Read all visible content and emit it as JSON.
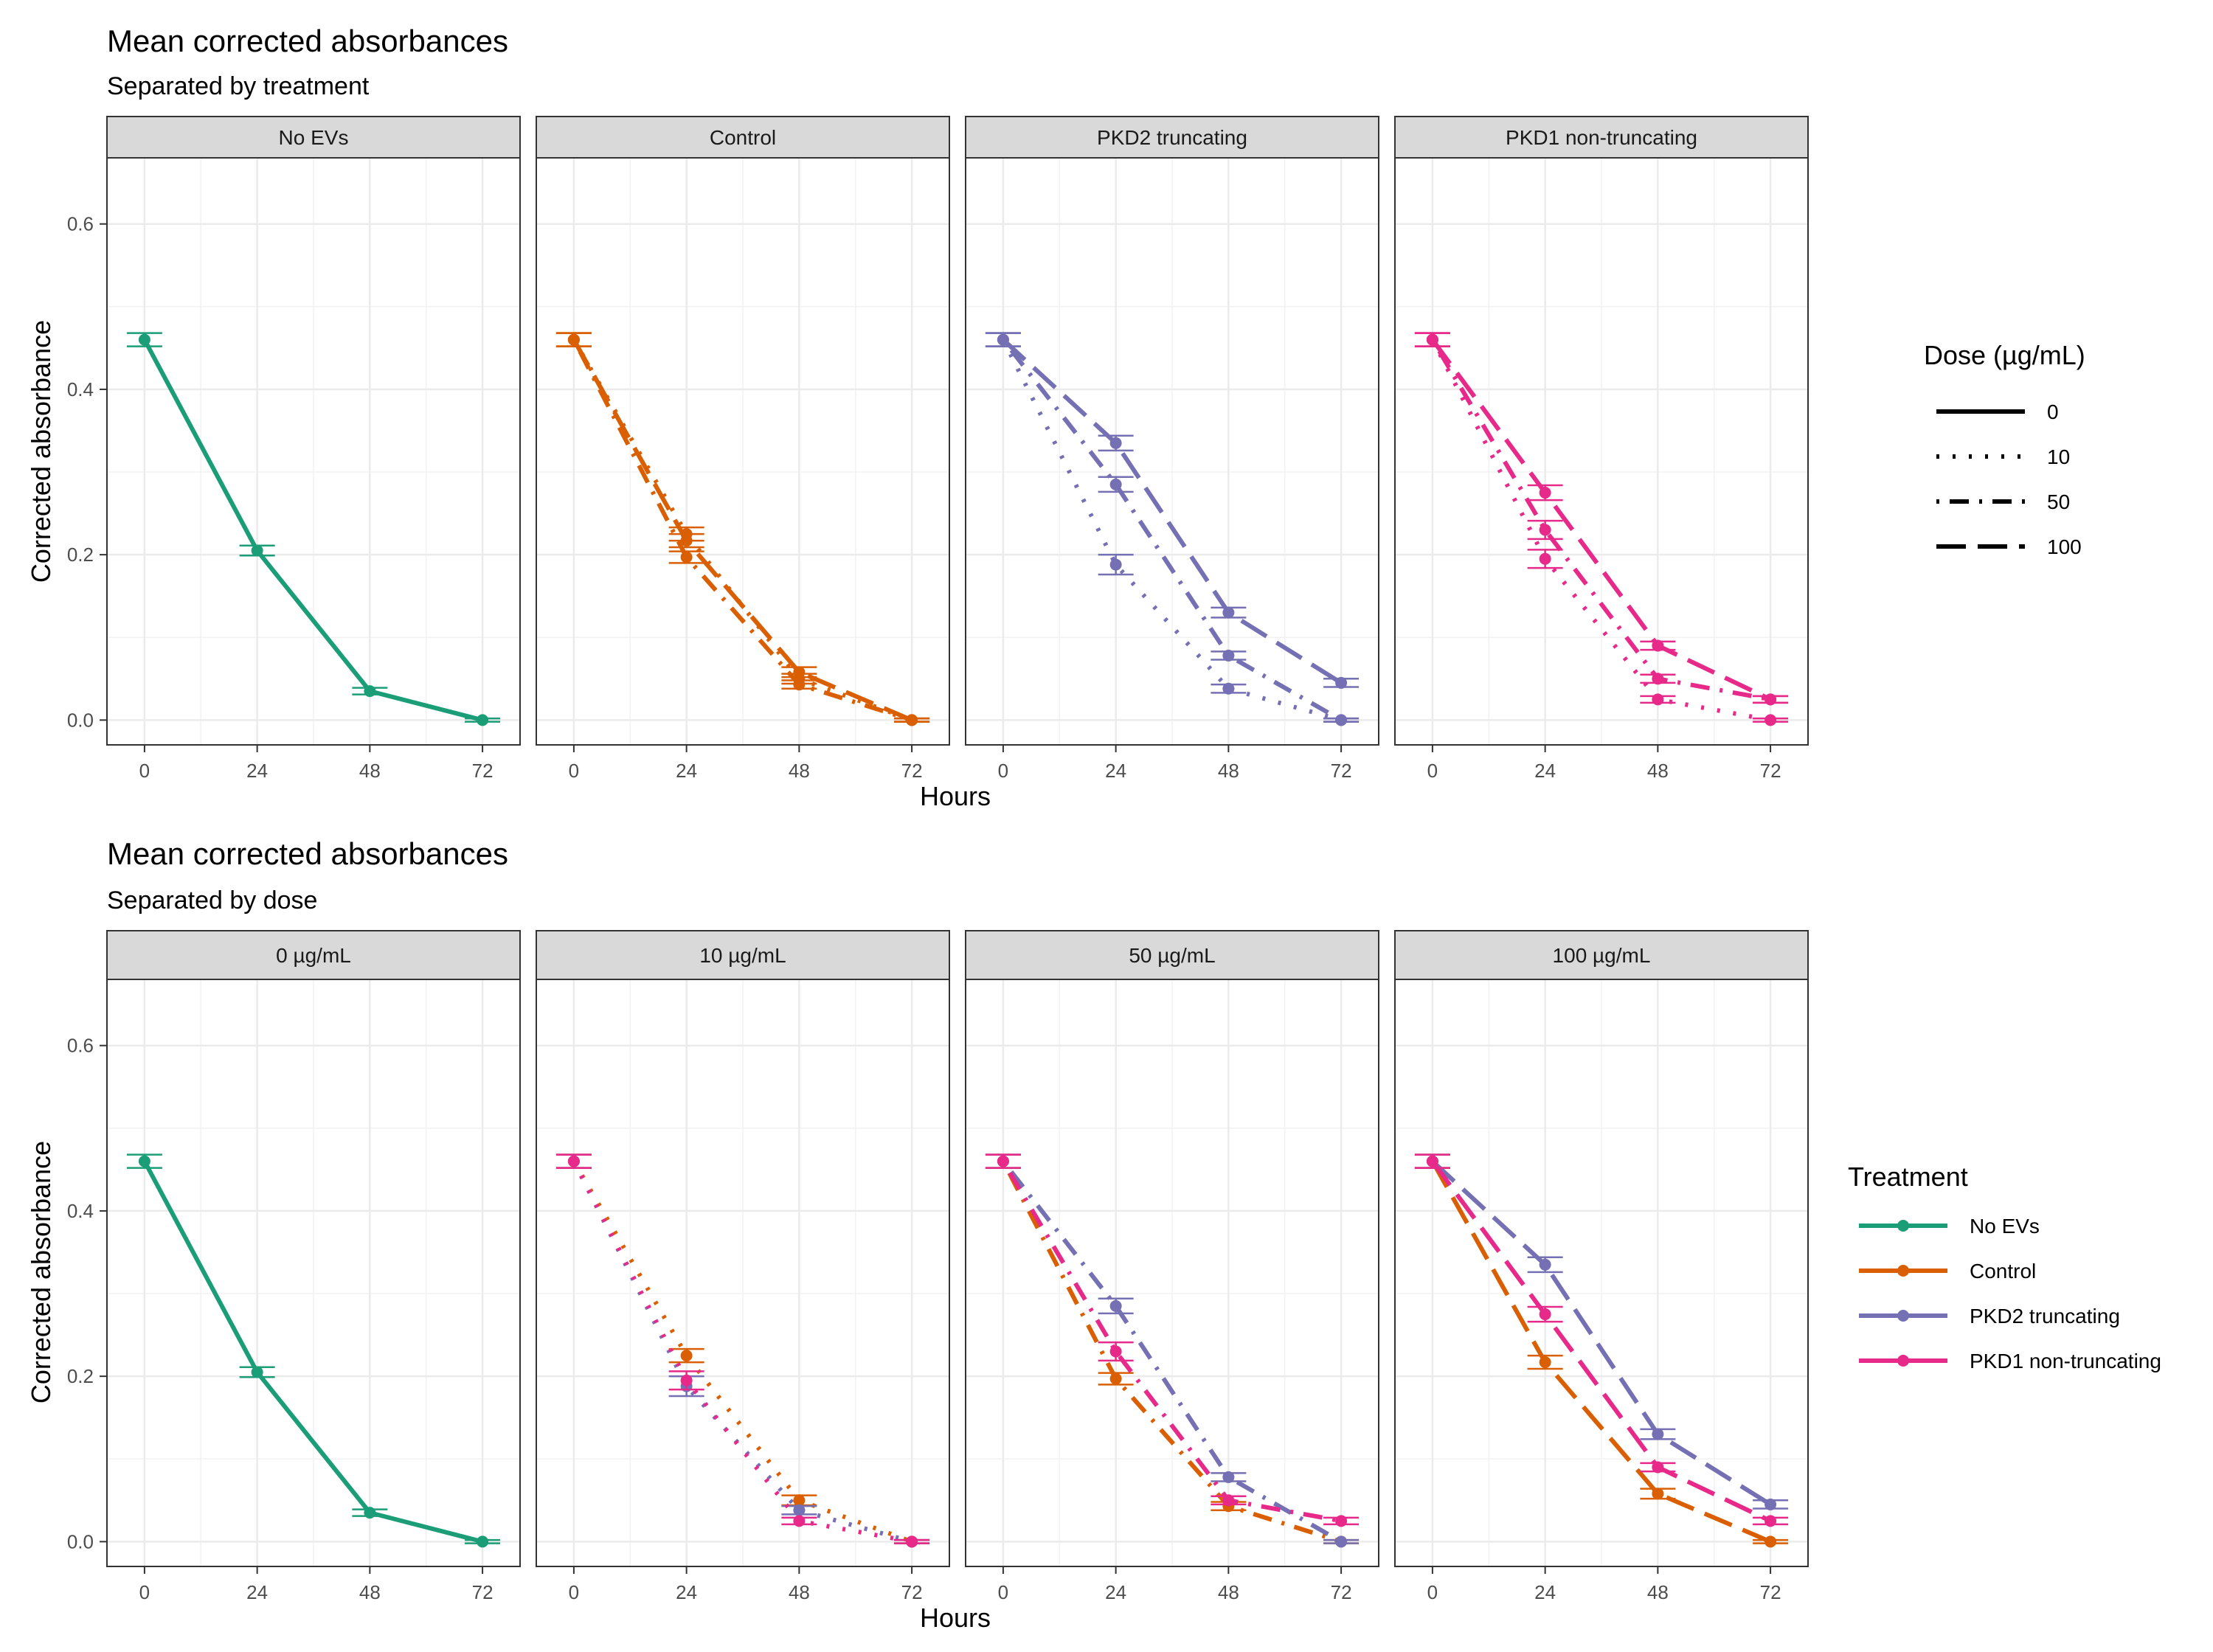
{
  "top": {
    "title": "Mean corrected absorbances",
    "subtitle": "Separated by treatment",
    "xlabel": "Hours",
    "ylabel": "Corrected absorbance",
    "panels": [
      "No EVs",
      "Control",
      "PKD2 truncating",
      "PKD1 non-truncating"
    ]
  },
  "bottom": {
    "title": "Mean corrected absorbances",
    "subtitle": "Separated by dose",
    "xlabel": "Hours",
    "ylabel": "Corrected absorbance",
    "panels": [
      "0 µg/mL",
      "10 µg/mL",
      "50 µg/mL",
      "100 µg/mL"
    ]
  },
  "legend_dose": {
    "title": "Dose (µg/mL)",
    "items": [
      {
        "label": "0",
        "dash": "solid"
      },
      {
        "label": "10",
        "dash": "dotted"
      },
      {
        "label": "50",
        "dash": "dotdash"
      },
      {
        "label": "100",
        "dash": "longdash"
      }
    ]
  },
  "legend_treatment": {
    "title": "Treatment",
    "items": [
      {
        "label": "No EVs",
        "color": "#1b9e77"
      },
      {
        "label": "Control",
        "color": "#d95f02"
      },
      {
        "label": "PKD2 truncating",
        "color": "#7570b3"
      },
      {
        "label": "PKD1 non-truncating",
        "color": "#e7298a"
      }
    ]
  },
  "chart_data": {
    "type": "line",
    "x": [
      0,
      24,
      48,
      72
    ],
    "xticks": [
      0,
      24,
      48,
      72
    ],
    "yticks": [
      0.0,
      0.2,
      0.4,
      0.6
    ],
    "ytick_labels": [
      "0.0",
      "0.2",
      "0.4",
      "0.6"
    ],
    "xlim": [
      -8,
      80
    ],
    "ylim": [
      -0.03,
      0.68
    ],
    "grid": true,
    "series": [
      {
        "treatment": "No EVs",
        "dose": "0",
        "color": "#1b9e77",
        "dash": "solid",
        "values": [
          0.46,
          0.205,
          0.035,
          0.0
        ],
        "errors": [
          0.008,
          0.006,
          0.004,
          0.002
        ]
      },
      {
        "treatment": "Control",
        "dose": "10",
        "color": "#d95f02",
        "dash": "dotted",
        "values": [
          0.46,
          0.225,
          0.05,
          0.0
        ],
        "errors": [
          0.008,
          0.008,
          0.006,
          0.002
        ]
      },
      {
        "treatment": "Control",
        "dose": "50",
        "color": "#d95f02",
        "dash": "dotdash",
        "values": [
          0.46,
          0.197,
          0.043,
          0.0
        ],
        "errors": [
          0.008,
          0.007,
          0.005,
          0.002
        ]
      },
      {
        "treatment": "Control",
        "dose": "100",
        "color": "#d95f02",
        "dash": "longdash",
        "values": [
          0.46,
          0.217,
          0.058,
          0.0
        ],
        "errors": [
          0.008,
          0.008,
          0.006,
          0.002
        ]
      },
      {
        "treatment": "PKD2 truncating",
        "dose": "10",
        "color": "#7570b3",
        "dash": "dotted",
        "values": [
          0.46,
          0.188,
          0.038,
          0.0
        ],
        "errors": [
          0.008,
          0.012,
          0.005,
          0.002
        ]
      },
      {
        "treatment": "PKD2 truncating",
        "dose": "50",
        "color": "#7570b3",
        "dash": "dotdash",
        "values": [
          0.46,
          0.285,
          0.078,
          0.0
        ],
        "errors": [
          0.008,
          0.009,
          0.005,
          0.002
        ]
      },
      {
        "treatment": "PKD2 truncating",
        "dose": "100",
        "color": "#7570b3",
        "dash": "longdash",
        "values": [
          0.46,
          0.335,
          0.13,
          0.045
        ],
        "errors": [
          0.008,
          0.009,
          0.006,
          0.005
        ]
      },
      {
        "treatment": "PKD1 non-truncating",
        "dose": "10",
        "color": "#e7298a",
        "dash": "dotted",
        "values": [
          0.46,
          0.195,
          0.025,
          0.0
        ],
        "errors": [
          0.008,
          0.011,
          0.004,
          0.002
        ]
      },
      {
        "treatment": "PKD1 non-truncating",
        "dose": "50",
        "color": "#e7298a",
        "dash": "dotdash",
        "values": [
          0.46,
          0.23,
          0.05,
          0.025
        ],
        "errors": [
          0.008,
          0.011,
          0.005,
          0.004
        ]
      },
      {
        "treatment": "PKD1 non-truncating",
        "dose": "100",
        "color": "#e7298a",
        "dash": "longdash",
        "values": [
          0.46,
          0.275,
          0.09,
          0.025
        ],
        "errors": [
          0.008,
          0.009,
          0.005,
          0.004
        ]
      }
    ]
  }
}
